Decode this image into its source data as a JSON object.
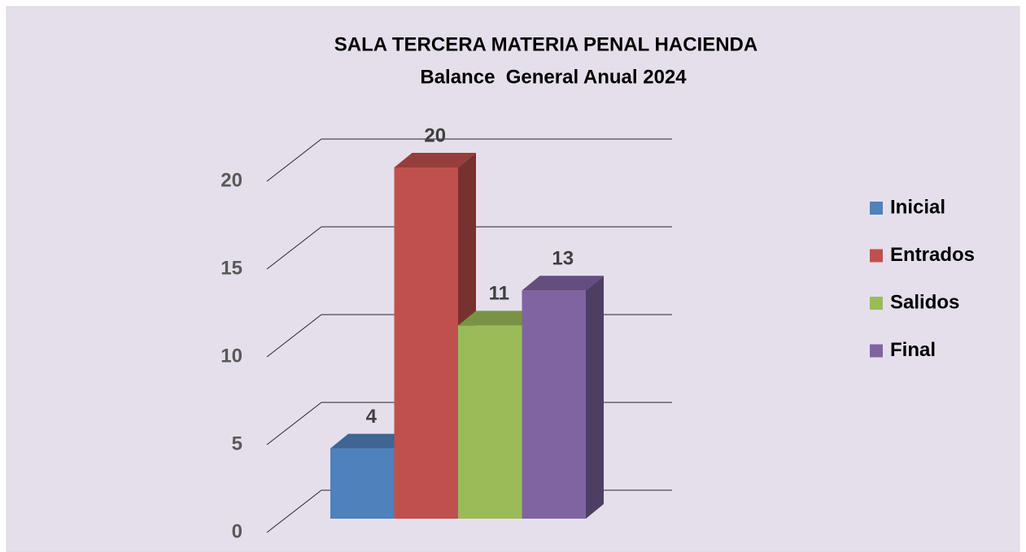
{
  "chart_data": {
    "type": "bar3d",
    "title": "SALA TERCERA MATERIA PENAL HACIENDA",
    "subtitle": "Balance  General Anual 2024",
    "categories": [
      null
    ],
    "series": [
      {
        "name": "Inicial",
        "color": "#4f81bd",
        "values": [
          4
        ]
      },
      {
        "name": "Entrados",
        "color": "#c0504d",
        "values": [
          20
        ]
      },
      {
        "name": "Salidos",
        "color": "#9bbb59",
        "values": [
          11
        ]
      },
      {
        "name": "Final",
        "color": "#8064a2",
        "values": [
          13
        ]
      }
    ],
    "ylim": [
      0,
      20
    ],
    "yticks": [
      0,
      5,
      10,
      15,
      20
    ],
    "grid": true,
    "legend": "right",
    "data_labels": true
  }
}
